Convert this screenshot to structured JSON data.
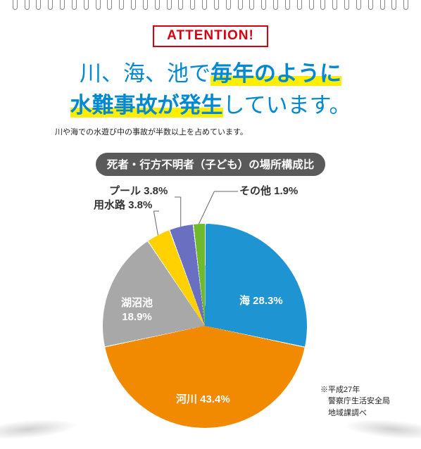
{
  "badge": {
    "text": "ATTENTION!",
    "border_color": "#d60012",
    "text_color": "#d60012"
  },
  "headline": {
    "color": "#0089d1",
    "highlight_bg": "#ffee00",
    "line1_plain": "川、海、池で",
    "line1_bold": "毎年のように",
    "line2_bold": "水難事故が発生",
    "line2_plain": "しています。"
  },
  "subnote": "川や海での水遊び中の事故が半数以上を占めています。",
  "chart_title": {
    "text": "死者・行方不明者（子ども）の場所構成比",
    "bg": "#5a5a5a"
  },
  "pie": {
    "type": "pie",
    "background_color": "#ffffff",
    "slice_gap_color": "#ffffff",
    "slices": [
      {
        "label": "海 28.3%",
        "value": 28.3,
        "color": "#1f94d2",
        "text_color": "#ffffff"
      },
      {
        "label": "河川 43.4%",
        "value": 43.4,
        "color": "#f18a00",
        "text_color": "#ffffff"
      },
      {
        "label": "湖沼池",
        "value": 18.9,
        "color": "#a8a8a8",
        "text_color": "#ffffff",
        "label2": "18.9%"
      },
      {
        "label": "用水路 3.8%",
        "value": 3.8,
        "color": "#ffd100",
        "text_color": "#333333",
        "external": true
      },
      {
        "label": "プール 3.8%",
        "value": 3.8,
        "color": "#6a6fc2",
        "text_color": "#333333",
        "external": true
      },
      {
        "label": "その他 1.9%",
        "value": 1.9,
        "color": "#6eb92c",
        "text_color": "#333333",
        "external": true
      }
    ]
  },
  "source": {
    "line1": "※平成27年",
    "line2": "　警察庁生活安全局",
    "line3": "　地域課調べ"
  }
}
